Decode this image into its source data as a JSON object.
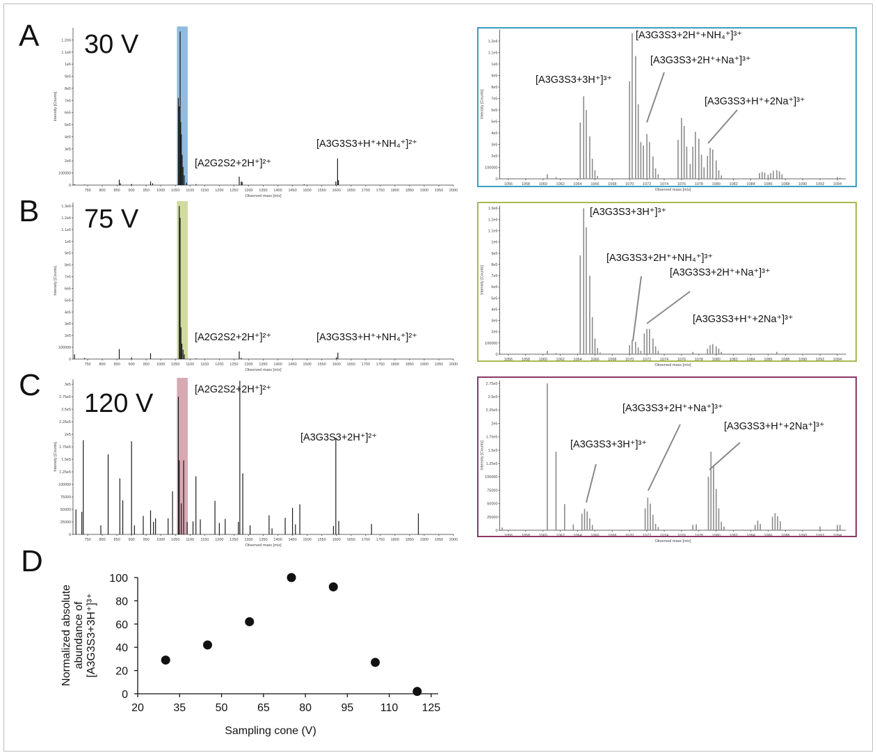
{
  "panels": {
    "A": {
      "letter": "A",
      "voltage": "30 V",
      "box_color": "#3a9dc2",
      "full_annotations": [
        "[A2G2S2+2H⁺]²⁺",
        "[A3G3S3+H⁺+NH₄⁺]²⁺"
      ],
      "zoom_annotations": [
        "[A3G3S3+3H⁺]³⁺",
        "[A3G3S3+2H⁺+NH₄⁺]³⁺",
        "[A3G3S3+2H⁺+Na⁺]³⁺",
        "[A3G3S3+H⁺+2Na⁺]³⁺"
      ]
    },
    "B": {
      "letter": "B",
      "voltage": "75 V",
      "box_color": "#a9b84e",
      "full_annotations": [
        "[A2G2S2+2H⁺]²⁺",
        "[A3G3S3+H⁺+NH₄⁺]²⁺"
      ],
      "zoom_annotations": [
        "[A3G3S3+3H⁺]³⁺",
        "[A3G3S3+2H⁺+NH₄⁺]³⁺",
        "[A3G3S3+2H⁺+Na⁺]³⁺",
        "[A3G3S3+H⁺+2Na⁺]³⁺"
      ]
    },
    "C": {
      "letter": "C",
      "voltage": "120 V",
      "box_color": "#8a3864",
      "full_annotations": [
        "[A2G2S2+2H⁺]²⁺",
        "[A3G3S3+2H⁺]²⁺"
      ],
      "zoom_annotations": [
        "[A3G3S3+2H⁺+Na⁺]³⁺",
        "[A3G3S3+H⁺+2Na⁺]³⁺",
        "[A3G3S3+3H⁺]³⁺"
      ]
    },
    "D": {
      "letter": "D"
    }
  },
  "chart_data": [
    {
      "id": "A_full",
      "type": "bar",
      "xlabel": "Observed mass [m/z]",
      "ylabel": "Intensity [Counts]",
      "xlim": [
        700,
        2000
      ],
      "ylim": [
        0,
        1300000
      ],
      "xticks": [
        750,
        800,
        850,
        900,
        950,
        1000,
        1050,
        1100,
        1150,
        1200,
        1250,
        1300,
        1350,
        1400,
        1450,
        1500,
        1550,
        1600,
        1650,
        1700,
        1750,
        1800,
        1850,
        1900,
        1950,
        2000
      ],
      "yticks": [
        0,
        100000,
        200000,
        300000,
        400000,
        500000,
        600000,
        700000,
        800000,
        900000,
        1000000,
        1100000,
        1200000
      ],
      "ytick_labels": [
        "0",
        "100000",
        "2e5",
        "3e5",
        "4e5",
        "5e5",
        "6e5",
        "7e5",
        "8e5",
        "9e5",
        "1e6",
        "1.1e6",
        "1.2e6"
      ],
      "highlight": {
        "range": [
          1055,
          1092
        ],
        "color": "#7eb0d9"
      },
      "peaks": [
        [
          705,
          8000
        ],
        [
          740,
          4000
        ],
        [
          858,
          45000
        ],
        [
          862,
          15000
        ],
        [
          900,
          10000
        ],
        [
          965,
          30000
        ],
        [
          972,
          15000
        ],
        [
          1060,
          720000
        ],
        [
          1063,
          650000
        ],
        [
          1066,
          1270000
        ],
        [
          1068,
          520000
        ],
        [
          1070,
          420000
        ],
        [
          1073,
          250000
        ],
        [
          1076,
          150000
        ],
        [
          1080,
          80000
        ],
        [
          1088,
          20000
        ],
        [
          1120,
          8000
        ],
        [
          1268,
          70000
        ],
        [
          1275,
          30000
        ],
        [
          1278,
          25000
        ],
        [
          1490,
          6000
        ],
        [
          1598,
          30000
        ],
        [
          1604,
          220000
        ],
        [
          1607,
          40000
        ]
      ]
    },
    {
      "id": "A_zoom",
      "type": "bar",
      "xlabel": "Observed mass [m/z]",
      "ylabel": "Intensity [Counts]",
      "xlim": [
        1055,
        1095
      ],
      "ylim": [
        0,
        1300000
      ],
      "xticks": [
        1056,
        1058,
        1060,
        1062,
        1064,
        1066,
        1068,
        1070,
        1072,
        1074,
        1076,
        1078,
        1080,
        1082,
        1084,
        1086,
        1088,
        1090,
        1092,
        1094
      ],
      "yticks": [
        0,
        100000,
        200000,
        300000,
        400000,
        500000,
        600000,
        700000,
        800000,
        900000,
        1000000,
        1100000,
        1200000
      ],
      "ytick_labels": [
        "0",
        "100000",
        "2e5",
        "3e5",
        "4e5",
        "5e5",
        "6e5",
        "7e5",
        "8e5",
        "9e5",
        "1e6",
        "1.1e6",
        "1.2e6"
      ],
      "peaks": [
        [
          1060.5,
          40000
        ],
        [
          1061.5,
          15000
        ],
        [
          1064.3,
          490000
        ],
        [
          1064.7,
          720000
        ],
        [
          1065.0,
          600000
        ],
        [
          1065.4,
          370000
        ],
        [
          1065.7,
          175000
        ],
        [
          1066.0,
          75000
        ],
        [
          1066.3,
          25000
        ],
        [
          1070.0,
          850000
        ],
        [
          1070.3,
          1270000
        ],
        [
          1070.7,
          1070000
        ],
        [
          1071.0,
          650000
        ],
        [
          1071.3,
          320000
        ],
        [
          1071.6,
          290000
        ],
        [
          1072.0,
          390000
        ],
        [
          1072.3,
          320000
        ],
        [
          1072.7,
          195000
        ],
        [
          1073.0,
          90000
        ],
        [
          1073.3,
          40000
        ],
        [
          1075.6,
          340000
        ],
        [
          1076.0,
          530000
        ],
        [
          1076.3,
          460000
        ],
        [
          1076.6,
          280000
        ],
        [
          1077.0,
          130000
        ],
        [
          1077.3,
          280000
        ],
        [
          1077.6,
          410000
        ],
        [
          1078.0,
          350000
        ],
        [
          1078.3,
          210000
        ],
        [
          1078.6,
          100000
        ],
        [
          1079.0,
          200000
        ],
        [
          1079.3,
          270000
        ],
        [
          1079.6,
          255000
        ],
        [
          1080.0,
          160000
        ],
        [
          1080.3,
          75000
        ],
        [
          1080.6,
          30000
        ],
        [
          1085.0,
          50000
        ],
        [
          1085.3,
          60000
        ],
        [
          1085.6,
          55000
        ],
        [
          1086.0,
          35000
        ],
        [
          1086.3,
          50000
        ],
        [
          1086.6,
          70000
        ],
        [
          1087.0,
          75000
        ],
        [
          1087.3,
          65000
        ],
        [
          1087.6,
          40000
        ],
        [
          1094.0,
          15000
        ],
        [
          1094.3,
          10000
        ]
      ]
    },
    {
      "id": "B_full",
      "type": "bar",
      "xlabel": "Observed mass [m/z]",
      "ylabel": "Intensity [Counts]",
      "xlim": [
        700,
        2000
      ],
      "ylim": [
        0,
        1330000
      ],
      "xticks": [
        750,
        800,
        850,
        900,
        950,
        1000,
        1050,
        1100,
        1150,
        1200,
        1250,
        1300,
        1350,
        1400,
        1450,
        1500,
        1550,
        1600,
        1650,
        1700,
        1750,
        1800,
        1850,
        1900,
        1950,
        2000
      ],
      "yticks": [
        0,
        100000,
        200000,
        300000,
        400000,
        500000,
        600000,
        700000,
        800000,
        900000,
        1000000,
        1100000,
        1200000,
        1300000
      ],
      "ytick_labels": [
        "0",
        "100000",
        "2e5",
        "3e5",
        "4e5",
        "5e5",
        "6e5",
        "7e5",
        "8e5",
        "9e5",
        "1e6",
        "1.1e6",
        "1.2e6",
        "1.3e6"
      ],
      "highlight": {
        "range": [
          1055,
          1092
        ],
        "color": "#c8d58e"
      },
      "peaks": [
        [
          705,
          40000
        ],
        [
          740,
          10000
        ],
        [
          858,
          85000
        ],
        [
          900,
          15000
        ],
        [
          965,
          50000
        ],
        [
          1063,
          1300000
        ],
        [
          1066,
          1200000
        ],
        [
          1069,
          270000
        ],
        [
          1072,
          130000
        ],
        [
          1076,
          80000
        ],
        [
          1080,
          40000
        ],
        [
          1120,
          6000
        ],
        [
          1268,
          65000
        ],
        [
          1275,
          10000
        ],
        [
          1600,
          15000
        ],
        [
          1605,
          55000
        ]
      ]
    },
    {
      "id": "B_zoom",
      "type": "bar",
      "xlabel": "Observed mass [m/z]",
      "ylabel": "Intensity [Counts]",
      "xlim": [
        1055,
        1095
      ],
      "ylim": [
        0,
        1320000
      ],
      "xticks": [
        1056,
        1058,
        1060,
        1062,
        1064,
        1066,
        1068,
        1070,
        1072,
        1074,
        1076,
        1078,
        1080,
        1082,
        1084,
        1086,
        1088,
        1090,
        1092,
        1094
      ],
      "yticks": [
        0,
        100000,
        200000,
        300000,
        400000,
        500000,
        600000,
        700000,
        800000,
        900000,
        1000000,
        1100000,
        1200000,
        1300000
      ],
      "ytick_labels": [
        "0",
        "100000",
        "2e5",
        "3e5",
        "4e5",
        "5e5",
        "6e5",
        "7e5",
        "8e5",
        "9e5",
        "1e6",
        "1.1e6",
        "1.2e6",
        "1.3e6"
      ],
      "peaks": [
        [
          1060.5,
          30000
        ],
        [
          1061.5,
          10000
        ],
        [
          1064.3,
          880000
        ],
        [
          1064.7,
          1300000
        ],
        [
          1065.0,
          1130000
        ],
        [
          1065.4,
          700000
        ],
        [
          1065.7,
          330000
        ],
        [
          1066.0,
          140000
        ],
        [
          1066.3,
          55000
        ],
        [
          1066.6,
          15000
        ],
        [
          1070.0,
          80000
        ],
        [
          1070.3,
          125000
        ],
        [
          1070.7,
          110000
        ],
        [
          1071.0,
          60000
        ],
        [
          1071.3,
          30000
        ],
        [
          1071.7,
          185000
        ],
        [
          1072.0,
          225000
        ],
        [
          1072.3,
          225000
        ],
        [
          1072.7,
          140000
        ],
        [
          1073.0,
          70000
        ],
        [
          1073.3,
          30000
        ],
        [
          1077.3,
          20000
        ],
        [
          1079.0,
          50000
        ],
        [
          1079.3,
          80000
        ],
        [
          1079.6,
          90000
        ],
        [
          1080.0,
          70000
        ],
        [
          1080.3,
          50000
        ],
        [
          1080.6,
          20000
        ],
        [
          1087.0,
          20000
        ]
      ]
    },
    {
      "id": "C_full",
      "type": "bar",
      "xlabel": "Observed mass [m/z]",
      "ylabel": "Intensity [Counts]",
      "xlim": [
        700,
        2000
      ],
      "ylim": [
        0,
        310000
      ],
      "xticks": [
        750,
        800,
        850,
        900,
        950,
        1000,
        1050,
        1100,
        1150,
        1200,
        1250,
        1300,
        1350,
        1400,
        1450,
        1500,
        1550,
        1600,
        1650,
        1700,
        1750,
        1800,
        1850,
        1900,
        1950,
        2000
      ],
      "yticks": [
        0,
        25000,
        50000,
        75000,
        100000,
        125000,
        150000,
        175000,
        200000,
        225000,
        250000,
        275000,
        300000
      ],
      "ytick_labels": [
        "0",
        "25000",
        "50000",
        "75000",
        "100000",
        "1.25e5",
        "1.5e5",
        "1.75e5",
        "2e5",
        "2.25e5",
        "2.5e5",
        "2.75e5",
        "3e5"
      ],
      "highlight": {
        "range": [
          1055,
          1092
        ],
        "color": "#cf9aa6"
      },
      "peaks": [
        [
          710,
          50000
        ],
        [
          730,
          45000
        ],
        [
          735,
          188000
        ],
        [
          795,
          18000
        ],
        [
          820,
          160000
        ],
        [
          860,
          112000
        ],
        [
          870,
          68000
        ],
        [
          900,
          186000
        ],
        [
          910,
          18000
        ],
        [
          940,
          37000
        ],
        [
          965,
          48000
        ],
        [
          975,
          25000
        ],
        [
          982,
          32000
        ],
        [
          1025,
          32000
        ],
        [
          1040,
          86000
        ],
        [
          1060,
          275000
        ],
        [
          1063,
          148000
        ],
        [
          1070,
          62000
        ],
        [
          1078,
          148000
        ],
        [
          1090,
          25000
        ],
        [
          1110,
          26000
        ],
        [
          1120,
          116000
        ],
        [
          1135,
          30000
        ],
        [
          1185,
          67000
        ],
        [
          1200,
          23000
        ],
        [
          1220,
          31000
        ],
        [
          1265,
          25000
        ],
        [
          1270,
          307000
        ],
        [
          1280,
          122000
        ],
        [
          1305,
          18000
        ],
        [
          1370,
          38000
        ],
        [
          1380,
          12000
        ],
        [
          1425,
          33000
        ],
        [
          1450,
          53000
        ],
        [
          1460,
          20000
        ],
        [
          1475,
          60000
        ],
        [
          1590,
          17000
        ],
        [
          1598,
          193000
        ],
        [
          1608,
          27000
        ],
        [
          1720,
          21000
        ],
        [
          1880,
          42000
        ]
      ]
    },
    {
      "id": "C_zoom",
      "type": "bar",
      "xlabel": "Observed mass [m/z]",
      "ylabel": "Intensity [Counts]",
      "xlim": [
        1055,
        1095
      ],
      "ylim": [
        0,
        280000
      ],
      "xticks": [
        1056,
        1058,
        1060,
        1062,
        1064,
        1066,
        1068,
        1070,
        1072,
        1074,
        1076,
        1078,
        1080,
        1082,
        1084,
        1086,
        1088,
        1090,
        1092,
        1094
      ],
      "yticks": [
        0,
        25000,
        50000,
        75000,
        100000,
        125000,
        150000,
        175000,
        200000,
        225000,
        250000,
        275000
      ],
      "ytick_labels": [
        "0",
        "25000",
        "50000",
        "75000",
        "100000",
        "1.25e5",
        "1.5e5",
        "1.75e5",
        "2e5",
        "2.25e5",
        "2.5e5",
        "2.75e5"
      ],
      "peaks": [
        [
          1055.3,
          5000
        ],
        [
          1060.5,
          275000
        ],
        [
          1061.5,
          147000
        ],
        [
          1062.5,
          49000
        ],
        [
          1063.5,
          11000
        ],
        [
          1064.5,
          31000
        ],
        [
          1064.8,
          40000
        ],
        [
          1065.1,
          35000
        ],
        [
          1065.4,
          22000
        ],
        [
          1065.7,
          10000
        ],
        [
          1071.8,
          41000
        ],
        [
          1072.1,
          61000
        ],
        [
          1072.4,
          50000
        ],
        [
          1072.7,
          29000
        ],
        [
          1073.0,
          12000
        ],
        [
          1073.3,
          6000
        ],
        [
          1077.3,
          10000
        ],
        [
          1077.7,
          11000
        ],
        [
          1079.1,
          100000
        ],
        [
          1079.4,
          147000
        ],
        [
          1079.7,
          122000
        ],
        [
          1080.0,
          77000
        ],
        [
          1080.3,
          41000
        ],
        [
          1080.6,
          16000
        ],
        [
          1080.9,
          7000
        ],
        [
          1084.5,
          10000
        ],
        [
          1084.8,
          18000
        ],
        [
          1085.1,
          12000
        ],
        [
          1086.5,
          25000
        ],
        [
          1086.8,
          32000
        ],
        [
          1087.1,
          26000
        ],
        [
          1087.4,
          17000
        ],
        [
          1092.0,
          7000
        ],
        [
          1094.0,
          10000
        ],
        [
          1094.3,
          10000
        ]
      ]
    },
    {
      "id": "D",
      "type": "scatter",
      "xlabel": "Sampling cone (V)",
      "ylabel": [
        "Normalized absolute",
        "abundance of",
        "[A3G3S3+3H⁺]³⁺"
      ],
      "xlim": [
        20,
        127.5
      ],
      "ylim": [
        0,
        100
      ],
      "xticks": [
        20,
        35,
        50,
        65,
        80,
        95,
        110,
        125
      ],
      "yticks": [
        0,
        20,
        40,
        60,
        80,
        100
      ],
      "x": [
        30,
        45,
        60,
        75,
        90,
        105,
        120
      ],
      "y": [
        29,
        42,
        62,
        100,
        92,
        27,
        2
      ]
    }
  ]
}
